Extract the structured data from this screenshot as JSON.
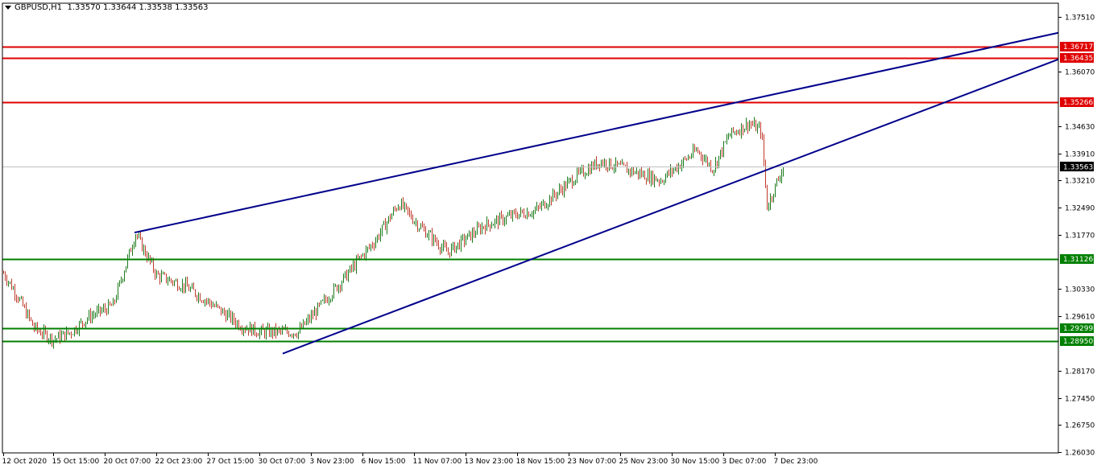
{
  "header": {
    "symbol": "GBPUSD,H1",
    "open": "1.33570",
    "high": "1.33644",
    "low": "1.33538",
    "close": "1.33563"
  },
  "colors": {
    "background": "#ffffff",
    "frame": "#000000",
    "bull_candle": "#1a7a1a",
    "bear_candle": "#c0392b",
    "resistance": "#e00000",
    "support": "#008000",
    "trendline": "#00008b",
    "price_line": "#c0c0c0",
    "current_label_bg": "#000000"
  },
  "chart_data": {
    "type": "candlestick",
    "symbol": "GBPUSD",
    "timeframe": "H1",
    "ylim": [
      1.2601,
      1.3787
    ],
    "y_ticks": [
      "1.37510",
      "1.36070",
      "1.34630",
      "1.33910",
      "1.33210",
      "1.32490",
      "1.31770",
      "1.30330",
      "1.29610",
      "1.28170",
      "1.27450",
      "1.26750",
      "1.26030"
    ],
    "x_ticks": [
      "12 Oct 2020",
      "15 Oct 15:00",
      "20 Oct 07:00",
      "22 Oct 23:00",
      "27 Oct 15:00",
      "30 Oct 07:00",
      "3 Nov 23:00",
      "6 Nov 15:00",
      "11 Nov 07:00",
      "13 Nov 23:00",
      "18 Nov 15:00",
      "23 Nov 07:00",
      "25 Nov 23:00",
      "30 Nov 15:00",
      "3 Dec 07:00",
      "7 Dec 23:00"
    ],
    "current_price": {
      "label": "1.33563",
      "value": 1.33563
    },
    "horizontal_levels": [
      {
        "label": "1.36717",
        "value": 1.36717,
        "kind": "resistance"
      },
      {
        "label": "1.36435",
        "value": 1.36435,
        "kind": "resistance"
      },
      {
        "label": "1.35266",
        "value": 1.35266,
        "kind": "resistance"
      },
      {
        "label": "1.31126",
        "value": 1.31126,
        "kind": "support"
      },
      {
        "label": "1.29299",
        "value": 1.29299,
        "kind": "support"
      },
      {
        "label": "1.28950",
        "value": 1.2895,
        "kind": "support"
      }
    ],
    "trendlines": [
      {
        "name": "upper",
        "from": {
          "time": "20 Oct 07:00",
          "price": 1.3182
        },
        "to_price_at_right_edge": 1.3709
      },
      {
        "name": "lower",
        "from": {
          "time": "30 Oct 07:00",
          "price": 1.2863
        },
        "to_price_at_right_edge": 1.3639
      }
    ],
    "price_path": [
      {
        "t": "12 Oct 2020",
        "price": 1.3075
      },
      {
        "t": "13 Oct",
        "price": 1.302
      },
      {
        "t": "14 Oct",
        "price": 1.293
      },
      {
        "t": "15 Oct 15:00",
        "price": 1.29
      },
      {
        "t": "16 Oct",
        "price": 1.292
      },
      {
        "t": "19 Oct",
        "price": 1.296
      },
      {
        "t": "20 Oct 07:00",
        "price": 1.299
      },
      {
        "t": "20 Oct 18:00",
        "price": 1.318
      },
      {
        "t": "22 Oct 23:00",
        "price": 1.307
      },
      {
        "t": "26 Oct",
        "price": 1.304
      },
      {
        "t": "27 Oct 15:00",
        "price": 1.3
      },
      {
        "t": "29 Oct",
        "price": 1.2935
      },
      {
        "t": "30 Oct 07:00",
        "price": 1.292
      },
      {
        "t": "2 Nov",
        "price": 1.292
      },
      {
        "t": "3 Nov 23:00",
        "price": 1.307
      },
      {
        "t": "5 Nov",
        "price": 1.311
      },
      {
        "t": "6 Nov 15:00",
        "price": 1.316
      },
      {
        "t": "9 Nov",
        "price": 1.326
      },
      {
        "t": "10 Nov",
        "price": 1.32
      },
      {
        "t": "11 Nov 07:00",
        "price": 1.313
      },
      {
        "t": "13 Nov 23:00",
        "price": 1.32
      },
      {
        "t": "16 Nov",
        "price": 1.323
      },
      {
        "t": "18 Nov 15:00",
        "price": 1.324
      },
      {
        "t": "23 Nov 07:00",
        "price": 1.333
      },
      {
        "t": "24 Nov",
        "price": 1.337
      },
      {
        "t": "25 Nov 23:00",
        "price": 1.335
      },
      {
        "t": "27 Nov",
        "price": 1.332
      },
      {
        "t": "30 Nov 15:00",
        "price": 1.34
      },
      {
        "t": "1 Dec",
        "price": 1.335
      },
      {
        "t": "2 Dec",
        "price": 1.344
      },
      {
        "t": "3 Dec 07:00",
        "price": 1.347
      },
      {
        "t": "4 Dec",
        "price": 1.345
      },
      {
        "t": "7 Dec",
        "price": 1.325
      },
      {
        "t": "7 Dec 23:00",
        "price": 1.3356
      }
    ]
  }
}
